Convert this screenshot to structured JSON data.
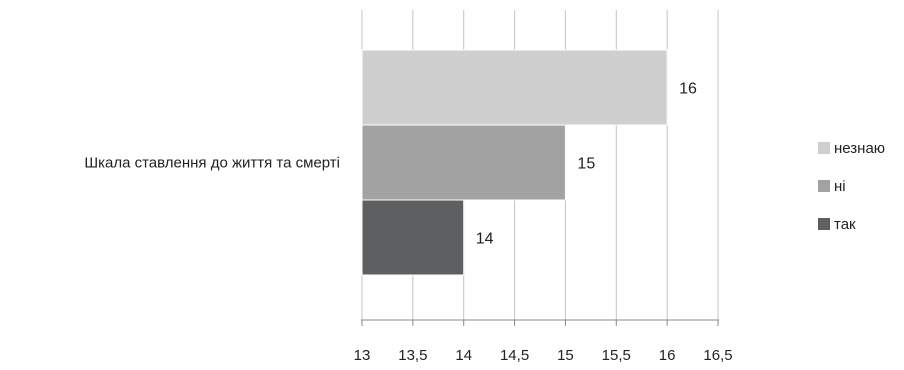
{
  "chart_data": {
    "type": "bar",
    "orientation": "horizontal",
    "categories": [
      "Шкала ставлення до життя та смерті"
    ],
    "series": [
      {
        "name": "незнаю",
        "values": [
          16
        ],
        "color": "#cfcfcf"
      },
      {
        "name": "ні",
        "values": [
          15
        ],
        "color": "#a2a2a2"
      },
      {
        "name": "так",
        "values": [
          14
        ],
        "color": "#5d5f60"
      }
    ],
    "data_labels": [
      "16",
      "15",
      "14"
    ],
    "x_ticks": [
      "13",
      "13,5",
      "14",
      "14,5",
      "15",
      "15,5",
      "16",
      "16,5"
    ],
    "xlim": [
      13,
      16.5
    ],
    "grid": "vertical",
    "legend_position": "right",
    "title": "",
    "xlabel": "",
    "ylabel": ""
  }
}
